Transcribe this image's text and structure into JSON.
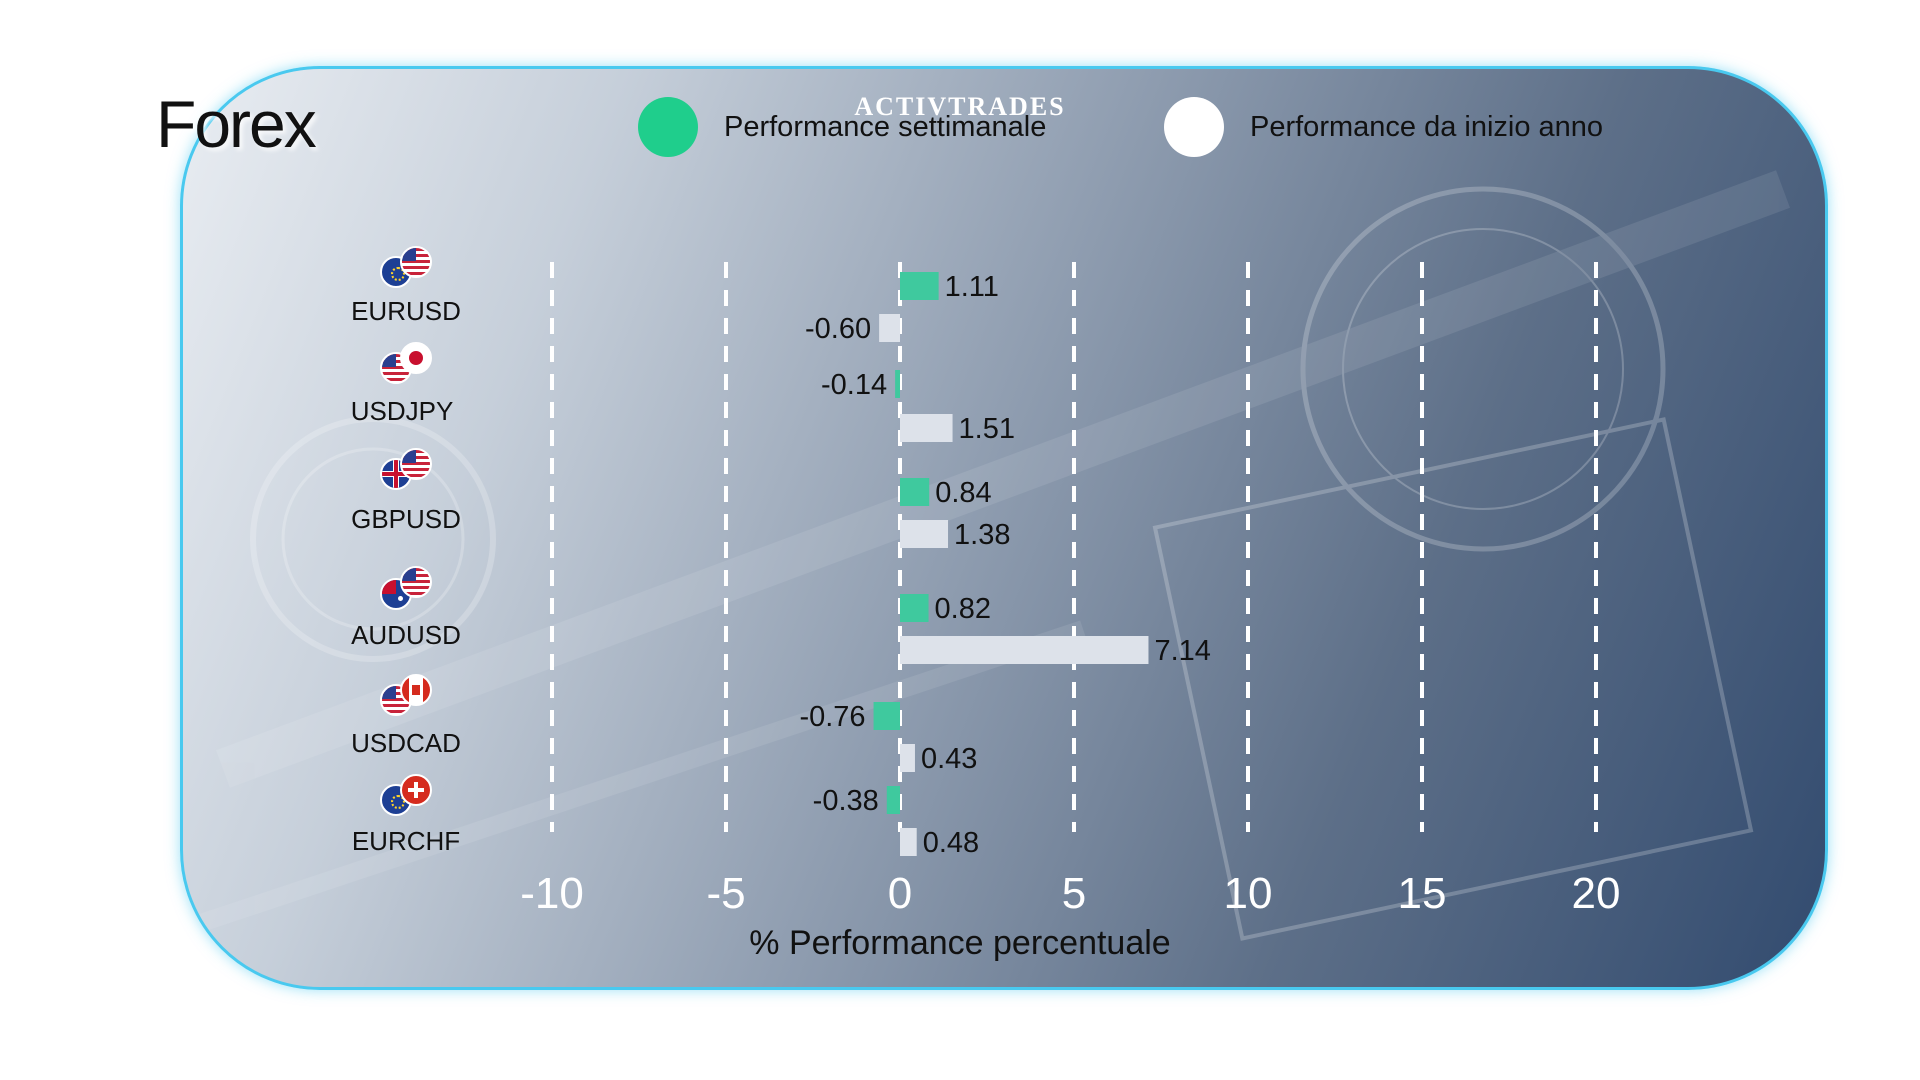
{
  "brand": "ACTIVTRADES",
  "title": "Forex",
  "legend": [
    {
      "label": "Performance settimanale",
      "color": "#1fce8c",
      "icon": "green-circle-icon"
    },
    {
      "label": "Performance da inizio anno",
      "color": "#ffffff",
      "icon": "white-circle-icon"
    }
  ],
  "pairs": [
    {
      "label": "EURUSD",
      "flags": [
        "eu-flag-icon",
        "us-flag-icon"
      ]
    },
    {
      "label": "USDJPY",
      "flags": [
        "us-flag-icon",
        "jp-flag-icon"
      ]
    },
    {
      "label": "GBPUSD",
      "flags": [
        "uk-flag-icon",
        "us-flag-icon"
      ]
    },
    {
      "label": "AUDUSD",
      "flags": [
        "au-flag-icon",
        "us-flag-icon"
      ]
    },
    {
      "label": "USDCAD",
      "flags": [
        "us-flag-icon",
        "ca-flag-icon"
      ]
    },
    {
      "label": "EURCHF",
      "flags": [
        "eu-flag-icon",
        "ch-flag-icon"
      ]
    }
  ],
  "chart_data": {
    "type": "bar",
    "orientation": "horizontal",
    "categories": [
      "EURUSD",
      "USDJPY",
      "GBPUSD",
      "AUDUSD",
      "USDCAD",
      "EURCHF"
    ],
    "series": [
      {
        "name": "Performance settimanale",
        "values": [
          1.11,
          -0.14,
          0.84,
          0.82,
          -0.76,
          -0.38
        ],
        "labels": [
          "1.11",
          "-0.14",
          "0.84",
          "0.82",
          "-0.76",
          "-0.38"
        ],
        "color": "#3fc99e"
      },
      {
        "name": "Performance da inizio anno",
        "values": [
          -0.6,
          1.51,
          1.38,
          7.14,
          0.43,
          0.48
        ],
        "labels": [
          "-0.60",
          "1.51",
          "1.38",
          "7.14",
          "0.43",
          "0.48"
        ],
        "color": "#dde2ea"
      }
    ],
    "xticks": [
      -10,
      -5,
      0,
      5,
      10,
      15,
      20
    ],
    "xlim": [
      -10,
      20
    ],
    "xlabel": "% Performance percentuale",
    "grid": "vertical-dashed",
    "legend_position": "top"
  }
}
